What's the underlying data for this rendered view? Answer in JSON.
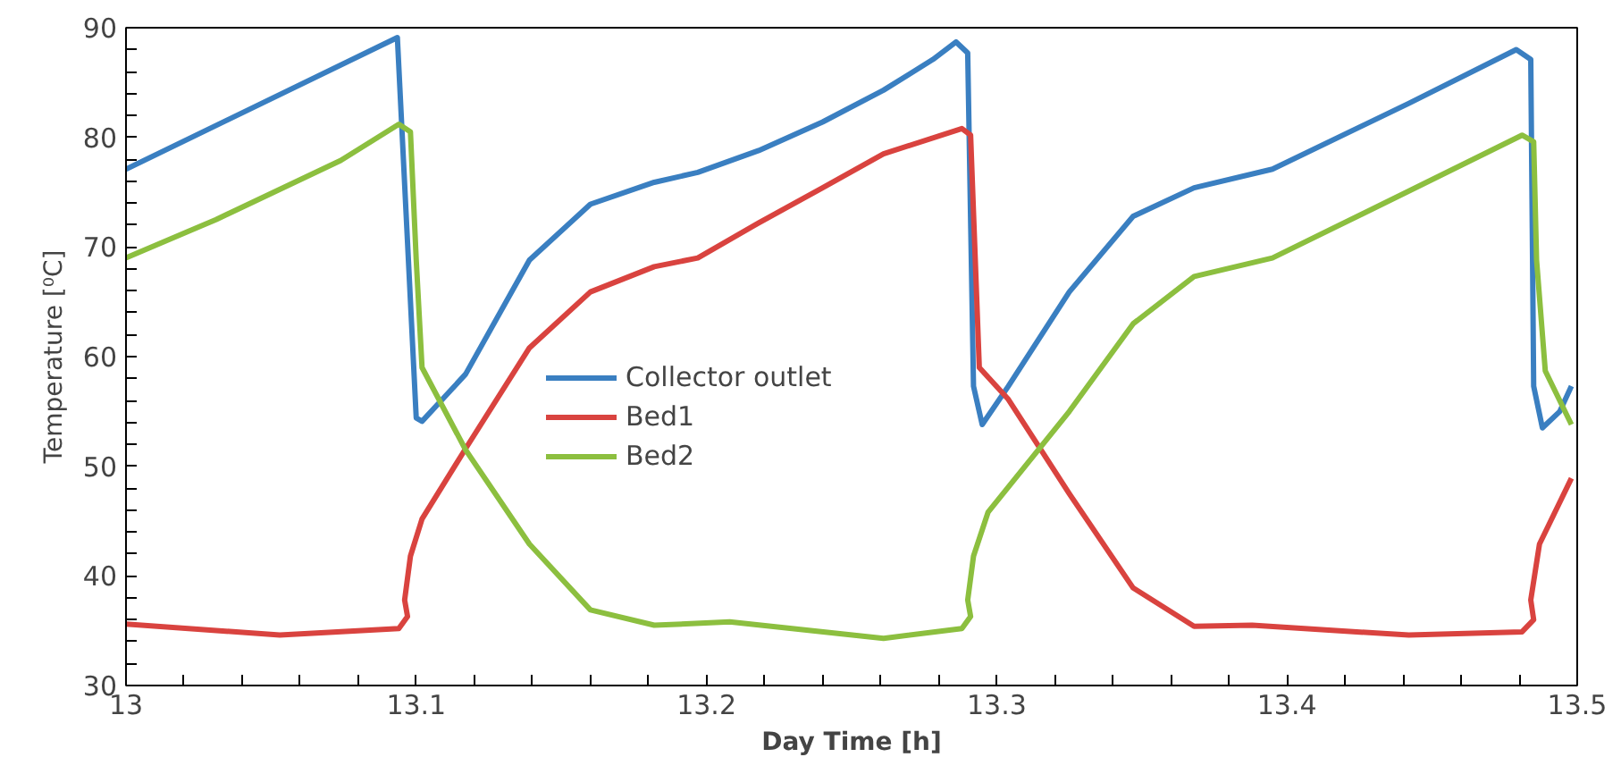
{
  "chart_data": {
    "type": "line",
    "xlabel": "Day Time [h]",
    "ylabel": "Temperature [⁰C]",
    "xlim": [
      13,
      13.5
    ],
    "xticks": [
      13,
      13.1,
      13.2,
      13.3,
      13.4,
      13.5
    ],
    "ylim": [
      30,
      90
    ],
    "yticks": [
      30,
      40,
      50,
      60,
      70,
      80,
      90
    ],
    "grid": false,
    "legend": "center",
    "marker": "none",
    "line_style": "solid",
    "series": [
      {
        "name": "Collector outlet",
        "color": "#3a7fc1",
        "x": [
          13,
          13.0935,
          13.1,
          13.102,
          13.117,
          13.139,
          13.16,
          13.182,
          13.197,
          13.218,
          13.24,
          13.261,
          13.278,
          13.286,
          13.29,
          13.292,
          13.295,
          13.304,
          13.325,
          13.347,
          13.368,
          13.395,
          13.442,
          13.479,
          13.484,
          13.485,
          13.488,
          13.494,
          13.498
        ],
        "values": [
          77.1,
          89.1,
          54.4,
          54.1,
          58.4,
          68.8,
          73.9,
          75.9,
          76.8,
          78.8,
          81.4,
          84.3,
          87.1,
          88.7,
          87.7,
          57.3,
          53.8,
          57.3,
          65.9,
          72.8,
          75.4,
          77.1,
          83.1,
          88.0,
          87.1,
          57.3,
          53.5,
          55.0,
          57.3
        ]
      },
      {
        "name": "Bed1",
        "color": "#d9433f",
        "x": [
          13,
          13.053,
          13.094,
          13.097,
          13.096,
          13.098,
          13.102,
          13.117,
          13.139,
          13.16,
          13.182,
          13.197,
          13.218,
          13.24,
          13.261,
          13.288,
          13.291,
          13.294,
          13.304,
          13.325,
          13.347,
          13.368,
          13.388,
          13.442,
          13.481,
          13.485,
          13.484,
          13.487,
          13.498
        ],
        "values": [
          35.6,
          34.6,
          35.2,
          36.3,
          37.8,
          41.8,
          45.2,
          51.6,
          60.8,
          65.9,
          68.2,
          69.0,
          72.2,
          75.4,
          78.5,
          80.8,
          80.2,
          59.0,
          56.1,
          47.5,
          38.9,
          35.4,
          35.5,
          34.6,
          34.9,
          36.0,
          37.8,
          42.9,
          48.9
        ]
      },
      {
        "name": "Bed2",
        "color": "#8cbf3f",
        "x": [
          13,
          13.031,
          13.074,
          13.094,
          13.098,
          13.1,
          13.102,
          13.117,
          13.139,
          13.16,
          13.182,
          13.208,
          13.261,
          13.288,
          13.291,
          13.29,
          13.292,
          13.297,
          13.325,
          13.347,
          13.368,
          13.395,
          13.442,
          13.481,
          13.485,
          13.486,
          13.489,
          13.498
        ],
        "values": [
          69.0,
          72.5,
          77.9,
          81.2,
          80.5,
          68.8,
          59.0,
          51.5,
          42.9,
          36.9,
          35.5,
          35.8,
          34.3,
          35.2,
          36.3,
          37.8,
          41.8,
          45.8,
          55.0,
          63.0,
          67.3,
          69.0,
          75.1,
          80.2,
          79.6,
          68.8,
          58.7,
          53.8
        ]
      }
    ]
  }
}
